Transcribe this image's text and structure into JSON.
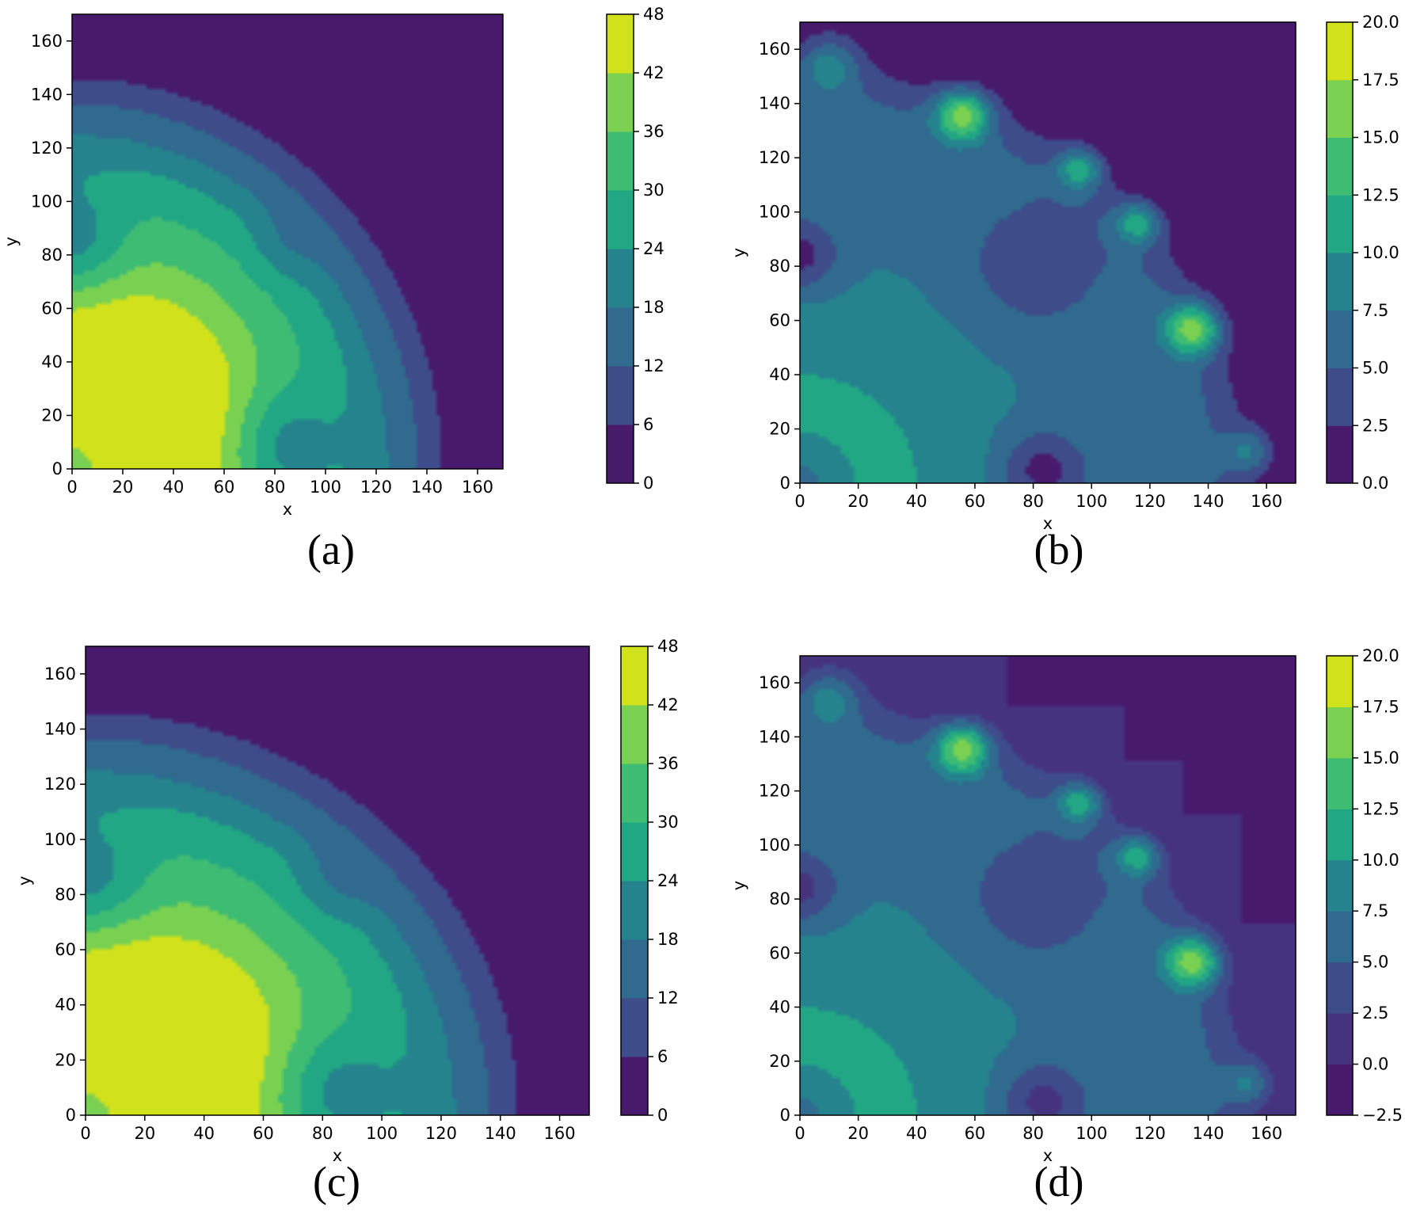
{
  "colors": {
    "viridis": [
      "#440154",
      "#482878",
      "#3e4989",
      "#31688e",
      "#26828e",
      "#1f9e89",
      "#35b779",
      "#6ece58",
      "#b5de2b",
      "#fde725"
    ]
  },
  "chart_data": [
    {
      "id": "a",
      "panel_label": "(a)",
      "type": "filled-contour",
      "xlabel": "x",
      "ylabel": "y",
      "xlim": [
        0,
        170
      ],
      "ylim": [
        0,
        170
      ],
      "xticks": [
        0,
        20,
        40,
        60,
        80,
        100,
        120,
        140,
        160
      ],
      "xtick_labels": [
        "0",
        "20",
        "40",
        "60",
        "80",
        "100",
        "120",
        "140",
        "160"
      ],
      "yticks": [
        0,
        20,
        40,
        60,
        80,
        100,
        120,
        140,
        160
      ],
      "ytick_labels": [
        "0",
        "20",
        "40",
        "60",
        "80",
        "100",
        "120",
        "140",
        "160"
      ],
      "colorbar": {
        "levels": [
          0,
          6,
          12,
          18,
          24,
          30,
          36,
          42,
          48
        ],
        "labels": [
          "0",
          "6",
          "12",
          "18",
          "24",
          "30",
          "36",
          "42",
          "48"
        ],
        "colors": [
          "#481a6c",
          "#3e4c8a",
          "#306a8e",
          "#25838e",
          "#22a785",
          "#3fbc73",
          "#7ad151",
          "#d1e11c"
        ]
      },
      "field": {
        "radial_profile": [
          [
            0,
            47
          ],
          [
            20,
            46
          ],
          [
            40,
            45
          ],
          [
            60,
            43
          ],
          [
            80,
            36
          ],
          [
            100,
            30
          ],
          [
            115,
            24
          ],
          [
            125,
            18
          ],
          [
            135,
            13
          ],
          [
            142,
            8
          ],
          [
            150,
            4
          ],
          [
            155,
            0
          ]
        ],
        "blobs": [
          {
            "x": 35,
            "y": 35,
            "a": 7,
            "s": 25
          },
          {
            "x": 0,
            "y": 84,
            "a": -13,
            "s": 14
          },
          {
            "x": 83,
            "y": 8,
            "a": -13,
            "s": 15
          },
          {
            "x": 0,
            "y": 0,
            "a": -8,
            "s": 11
          },
          {
            "x": 83,
            "y": 83,
            "a": -4,
            "s": 9
          }
        ]
      }
    },
    {
      "id": "b",
      "panel_label": "(b)",
      "type": "filled-contour",
      "xlabel": "x",
      "ylabel": "y",
      "xlim": [
        0,
        170
      ],
      "ylim": [
        0,
        170
      ],
      "xticks": [
        0,
        20,
        40,
        60,
        80,
        100,
        120,
        140,
        160
      ],
      "xtick_labels": [
        "0",
        "20",
        "40",
        "60",
        "80",
        "100",
        "120",
        "140",
        "160"
      ],
      "yticks": [
        0,
        20,
        40,
        60,
        80,
        100,
        120,
        140,
        160
      ],
      "ytick_labels": [
        "0",
        "20",
        "40",
        "60",
        "80",
        "100",
        "120",
        "140",
        "160"
      ],
      "colorbar": {
        "levels": [
          0.0,
          2.5,
          5.0,
          7.5,
          10.0,
          12.5,
          15.0,
          17.5,
          20.0
        ],
        "labels": [
          "0.0",
          "2.5",
          "5.0",
          "7.5",
          "10.0",
          "12.5",
          "15.0",
          "17.5",
          "20.0"
        ],
        "colors": [
          "#481a6c",
          "#3e4c8a",
          "#306a8e",
          "#25838e",
          "#22a785",
          "#3fbc73",
          "#7ad151",
          "#d1e11c"
        ]
      },
      "field": {
        "radial_profile": [
          [
            0,
            10.5
          ],
          [
            40,
            10
          ],
          [
            70,
            8
          ],
          [
            100,
            7
          ],
          [
            125,
            6.5
          ],
          [
            140,
            5.5
          ],
          [
            150,
            3
          ],
          [
            158,
            1
          ],
          [
            163,
            0
          ]
        ],
        "blobs": [
          {
            "x": 56,
            "y": 136,
            "a": 13,
            "s": 6.5
          },
          {
            "x": 96,
            "y": 116,
            "a": 9,
            "s": 5.5
          },
          {
            "x": 116,
            "y": 96,
            "a": 9,
            "s": 5.5
          },
          {
            "x": 135,
            "y": 57,
            "a": 13,
            "s": 6.5
          },
          {
            "x": 10,
            "y": 155,
            "a": 7,
            "s": 8
          },
          {
            "x": 154,
            "y": 12,
            "a": 6,
            "s": 6
          },
          {
            "x": 80,
            "y": 80,
            "a": -4,
            "s": 15
          },
          {
            "x": 0,
            "y": 84,
            "a": -6,
            "s": 9
          },
          {
            "x": 83,
            "y": 5,
            "a": -6,
            "s": 10
          },
          {
            "x": 0,
            "y": 0,
            "a": -4,
            "s": 8
          }
        ]
      }
    },
    {
      "id": "c",
      "panel_label": "(c)",
      "type": "filled-contour",
      "xlabel": "x",
      "ylabel": "y",
      "xlim": [
        0,
        170
      ],
      "ylim": [
        0,
        170
      ],
      "xticks": [
        0,
        20,
        40,
        60,
        80,
        100,
        120,
        140,
        160
      ],
      "xtick_labels": [
        "0",
        "20",
        "40",
        "60",
        "80",
        "100",
        "120",
        "140",
        "160"
      ],
      "yticks": [
        0,
        20,
        40,
        60,
        80,
        100,
        120,
        140,
        160
      ],
      "ytick_labels": [
        "0",
        "20",
        "40",
        "60",
        "80",
        "100",
        "120",
        "140",
        "160"
      ],
      "colorbar": {
        "levels": [
          0,
          6,
          12,
          18,
          24,
          30,
          36,
          42,
          48
        ],
        "labels": [
          "0",
          "6",
          "12",
          "18",
          "24",
          "30",
          "36",
          "42",
          "48"
        ],
        "colors": [
          "#481a6c",
          "#3e4c8a",
          "#306a8e",
          "#25838e",
          "#22a785",
          "#3fbc73",
          "#7ad151",
          "#d1e11c"
        ]
      },
      "field": {
        "radial_profile": [
          [
            0,
            47
          ],
          [
            20,
            46
          ],
          [
            40,
            45
          ],
          [
            60,
            43
          ],
          [
            80,
            36
          ],
          [
            100,
            30
          ],
          [
            115,
            24
          ],
          [
            125,
            18
          ],
          [
            135,
            13
          ],
          [
            142,
            8
          ],
          [
            150,
            4
          ],
          [
            155,
            0
          ]
        ],
        "blobs": [
          {
            "x": 35,
            "y": 35,
            "a": 7,
            "s": 25
          },
          {
            "x": 0,
            "y": 84,
            "a": -13,
            "s": 14
          },
          {
            "x": 83,
            "y": 8,
            "a": -13,
            "s": 15
          },
          {
            "x": 0,
            "y": 0,
            "a": -8,
            "s": 11
          },
          {
            "x": 83,
            "y": 83,
            "a": -5,
            "s": 9
          }
        ]
      }
    },
    {
      "id": "d",
      "panel_label": "(d)",
      "type": "filled-contour",
      "xlabel": "x",
      "ylabel": "y",
      "xlim": [
        0,
        170
      ],
      "ylim": [
        0,
        170
      ],
      "xticks": [
        0,
        20,
        40,
        60,
        80,
        100,
        120,
        140,
        160
      ],
      "xtick_labels": [
        "0",
        "20",
        "40",
        "60",
        "80",
        "100",
        "120",
        "140",
        "160"
      ],
      "yticks": [
        0,
        20,
        40,
        60,
        80,
        100,
        120,
        140,
        160
      ],
      "ytick_labels": [
        "0",
        "20",
        "40",
        "60",
        "80",
        "100",
        "120",
        "140",
        "160"
      ],
      "colorbar": {
        "levels": [
          -2.5,
          0.0,
          2.5,
          5.0,
          7.5,
          10.0,
          12.5,
          15.0,
          17.5,
          20.0
        ],
        "labels": [
          "−2.5",
          "0.0",
          "2.5",
          "5.0",
          "7.5",
          "10.0",
          "12.5",
          "15.0",
          "17.5",
          "20.0"
        ],
        "colors": [
          "#481a6c",
          "#46337e",
          "#3e4c8a",
          "#306a8e",
          "#25838e",
          "#22a785",
          "#3fbc73",
          "#7ad151",
          "#d1e11c"
        ]
      },
      "field": {
        "radial_profile": [
          [
            0,
            10.5
          ],
          [
            40,
            10
          ],
          [
            70,
            8
          ],
          [
            100,
            7
          ],
          [
            125,
            6.5
          ],
          [
            140,
            5.5
          ],
          [
            150,
            3
          ],
          [
            158,
            1
          ],
          [
            163,
            0
          ]
        ],
        "outside_value": 1,
        "staircase_mask": [
          [
            71,
            172
          ],
          [
            71,
            152
          ],
          [
            111,
            152
          ],
          [
            111,
            131
          ],
          [
            131,
            131
          ],
          [
            131,
            111
          ],
          [
            151,
            111
          ],
          [
            151,
            71
          ],
          [
            172,
            71
          ],
          [
            172,
            172
          ]
        ],
        "masked_value": -1,
        "blobs": [
          {
            "x": 56,
            "y": 136,
            "a": 13,
            "s": 6.5
          },
          {
            "x": 96,
            "y": 116,
            "a": 9,
            "s": 5.5
          },
          {
            "x": 116,
            "y": 96,
            "a": 9,
            "s": 5.5
          },
          {
            "x": 135,
            "y": 57,
            "a": 13,
            "s": 6.5
          },
          {
            "x": 10,
            "y": 155,
            "a": 7,
            "s": 8
          },
          {
            "x": 154,
            "y": 12,
            "a": 6,
            "s": 6
          },
          {
            "x": 80,
            "y": 80,
            "a": -4,
            "s": 15
          },
          {
            "x": 0,
            "y": 84,
            "a": -6,
            "s": 9
          },
          {
            "x": 83,
            "y": 5,
            "a": -6,
            "s": 10
          },
          {
            "x": 0,
            "y": 0,
            "a": -4,
            "s": 8
          }
        ]
      }
    }
  ]
}
